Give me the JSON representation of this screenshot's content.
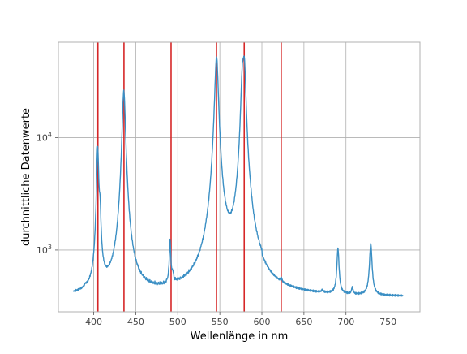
{
  "chart_data": {
    "type": "line",
    "xlabel": "Wellenlänge in nm",
    "ylabel": "durchnittliche Datenwerte",
    "xlim": [
      358,
      788
    ],
    "ylim_log10": [
      2.45,
      4.85
    ],
    "y_scale": "log",
    "grid": true,
    "x_ticks": [
      {
        "value": 400,
        "label": "400"
      },
      {
        "value": 450,
        "label": "450"
      },
      {
        "value": 500,
        "label": "500"
      },
      {
        "value": 550,
        "label": "550"
      },
      {
        "value": 600,
        "label": "600"
      },
      {
        "value": 650,
        "label": "650"
      },
      {
        "value": 700,
        "label": "700"
      },
      {
        "value": 750,
        "label": "750"
      }
    ],
    "y_ticks": [
      {
        "value": 1000,
        "base": "10",
        "exp": "3"
      },
      {
        "value": 10000,
        "base": "10",
        "exp": "4"
      }
    ],
    "reference_lines": {
      "color": "#d62728",
      "x": [
        405,
        436,
        492,
        546,
        579,
        623
      ]
    },
    "series": [
      {
        "color": "#3b8fc4",
        "baseline": 380,
        "x_range": [
          376,
          768
        ],
        "peaks": [
          {
            "x": 390,
            "y": 400,
            "w": 1.2
          },
          {
            "x": 404.7,
            "y": 8000,
            "w": 1.2
          },
          {
            "x": 407.5,
            "y": 1800,
            "w": 1.0
          },
          {
            "x": 435.8,
            "y": 26000,
            "w": 1.8
          },
          {
            "x": 490.8,
            "y": 1100,
            "w": 0.9
          },
          {
            "x": 494,
            "y": 480,
            "w": 1.0
          },
          {
            "x": 543,
            "y": 560,
            "w": 1.6
          },
          {
            "x": 546.1,
            "y": 52000,
            "w": 2.0
          },
          {
            "x": 576.9,
            "y": 30000,
            "w": 1.8
          },
          {
            "x": 579.1,
            "y": 40000,
            "w": 1.8
          },
          {
            "x": 586,
            "y": 560,
            "w": 2.0
          },
          {
            "x": 623,
            "y": 420,
            "w": 1.0
          },
          {
            "x": 672,
            "y": 400,
            "w": 1.2
          },
          {
            "x": 690.5,
            "y": 1000,
            "w": 1.3
          },
          {
            "x": 707.5,
            "y": 440,
            "w": 1.0
          },
          {
            "x": 729.5,
            "y": 1120,
            "w": 1.5
          }
        ],
        "shoulders": [
          {
            "from": 450,
            "to": 540,
            "y": 395
          },
          {
            "from": 540,
            "to": 600,
            "y": 470
          }
        ]
      }
    ]
  }
}
